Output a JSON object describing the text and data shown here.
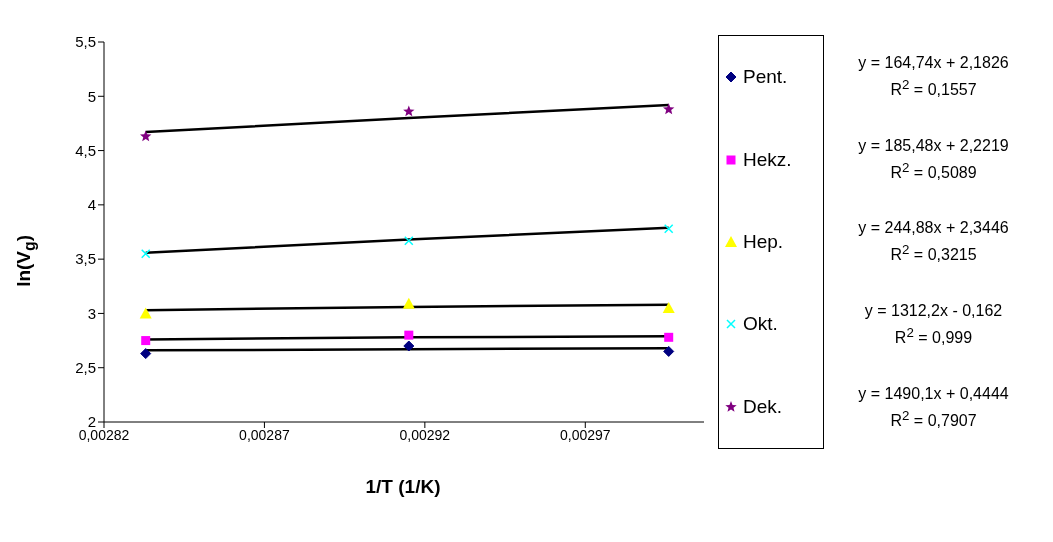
{
  "chart_data": {
    "type": "scatter",
    "xlabel": "1/T (1/K)",
    "ylabel": "ln(V$_{g}$)",
    "x": [
      0.002833,
      0.002915,
      0.002996
    ],
    "xlim": [
      0.00282,
      0.003007
    ],
    "xticks": [
      {
        "value": 0.00282,
        "label": "0,00282"
      },
      {
        "value": 0.00287,
        "label": "0,00287"
      },
      {
        "value": 0.00292,
        "label": "0,00292"
      },
      {
        "value": 0.00297,
        "label": "0,00297"
      }
    ],
    "ylim": [
      2,
      5.5
    ],
    "yticks": [
      {
        "value": 2,
        "label": "2"
      },
      {
        "value": 2.5,
        "label": "2,5"
      },
      {
        "value": 3,
        "label": "3"
      },
      {
        "value": 3.5,
        "label": "3,5"
      },
      {
        "value": 4,
        "label": "4"
      },
      {
        "value": 4.5,
        "label": "4,5"
      },
      {
        "value": 5,
        "label": "5"
      },
      {
        "value": 5.5,
        "label": "5,5"
      }
    ],
    "grid": false,
    "legend": "right",
    "series": [
      {
        "name": "Pent.",
        "marker": "diamond",
        "color": "#000080",
        "values": [
          2.63,
          2.7,
          2.65
        ]
      },
      {
        "name": "Hekz.",
        "marker": "square",
        "color": "#ff00ff",
        "values": [
          2.75,
          2.8,
          2.78
        ]
      },
      {
        "name": "Hep.",
        "marker": "triangle",
        "color": "#ffff00",
        "values": [
          3.0,
          3.09,
          3.05
        ]
      },
      {
        "name": "Okt.",
        "marker": "cross",
        "color": "#00ffff",
        "values": [
          3.55,
          3.67,
          3.78
        ]
      },
      {
        "name": "Dek.",
        "marker": "star",
        "color": "#800080",
        "values": [
          4.63,
          4.86,
          4.88
        ]
      },
      {
        "type": "line",
        "color": "#000000",
        "values": [
          2.66,
          2.67,
          2.68
        ]
      },
      {
        "type": "line",
        "color": "#000000",
        "values": [
          2.76,
          2.78,
          2.79
        ]
      },
      {
        "type": "line",
        "color": "#000000",
        "values": [
          3.03,
          3.06,
          3.08
        ]
      },
      {
        "type": "line",
        "color": "#000000",
        "values": [
          3.56,
          3.68,
          3.79
        ]
      },
      {
        "type": "line",
        "color": "#000000",
        "values": [
          4.67,
          4.8,
          4.92
        ]
      }
    ],
    "annotations": [
      "y = 164,74x + 2,1826",
      "R$^{2}$ = 0,1557",
      "y = 185,48x + 2,2219",
      "R$^{2}$ = 0,5089",
      "y = 244,88x + 2,3446",
      "R$^{2}$ = 0,3215",
      "y = 1312,2x - 0,162",
      "R$^{2}$ = 0,999",
      "y = 1490,1x + 0,4444",
      "R$^{2}$ = 0,7907"
    ]
  }
}
